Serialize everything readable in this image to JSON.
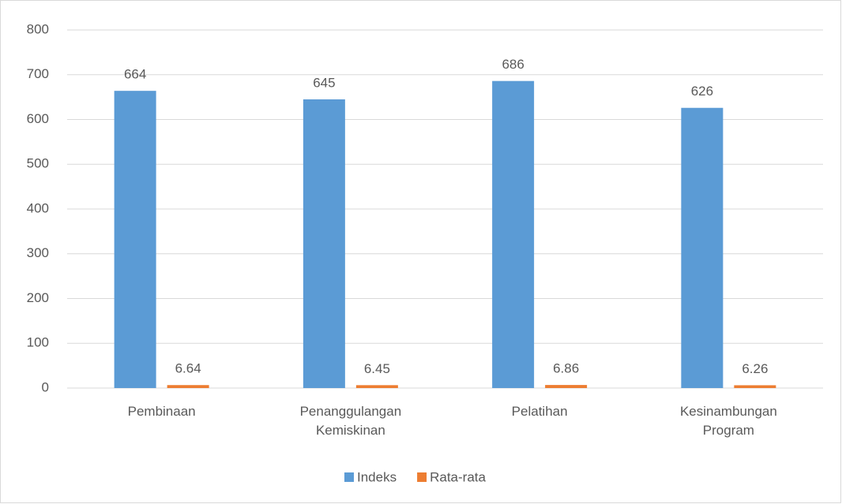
{
  "chart_data": {
    "type": "bar",
    "categories": [
      "Pembinaan",
      "Penanggulangan Kemiskinan",
      "Pelatihan",
      "Kesinambungan Program"
    ],
    "series": [
      {
        "name": "Indeks",
        "color": "#5b9bd5",
        "values": [
          664,
          645,
          686,
          626
        ]
      },
      {
        "name": "Rata-rata",
        "color": "#ed7d31",
        "values": [
          6.64,
          6.45,
          6.86,
          6.26
        ]
      }
    ],
    "ylim": [
      0,
      800
    ],
    "yticks": [
      0,
      100,
      200,
      300,
      400,
      500,
      600,
      700,
      800
    ],
    "grid": true,
    "legend": "bottom"
  }
}
